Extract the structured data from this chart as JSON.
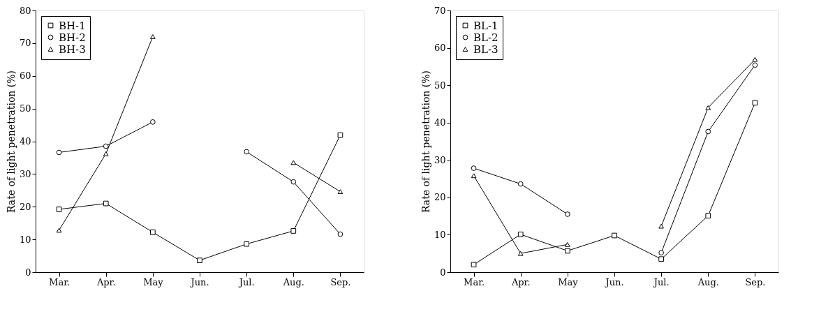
{
  "chart_data": [
    {
      "type": "line",
      "ylabel": "Rate of light penetration (%)",
      "categories": [
        "Mar.",
        "Apr.",
        "May",
        "Jun.",
        "Jul.",
        "Aug.",
        "Sep."
      ],
      "ylim": [
        0,
        80
      ],
      "yticks": [
        0,
        10,
        20,
        30,
        40,
        50,
        60,
        70,
        80
      ],
      "grid": false,
      "legend": "top left",
      "line_style": "solid",
      "series": [
        {
          "name": "BH-1",
          "color": "#000000",
          "marker": "square",
          "values": [
            19.2,
            21,
            12.2,
            3.6,
            8.6,
            12.6,
            41.9
          ]
        },
        {
          "name": "BH-2",
          "color": "#000000",
          "marker": "circle",
          "values": [
            36.6,
            38.5,
            45.9,
            null,
            36.8,
            27.6,
            11.6
          ]
        },
        {
          "name": "BH-3",
          "color": "#000000",
          "marker": "triangle",
          "values": [
            12.8,
            36.2,
            72,
            null,
            null,
            33.5,
            24.6
          ]
        }
      ]
    },
    {
      "type": "line",
      "ylabel": "Rate of light penetration (%)",
      "categories": [
        "Mar.",
        "Apr.",
        "May",
        "Jun.",
        "Jul.",
        "Aug.",
        "Sep."
      ],
      "ylim": [
        0,
        70
      ],
      "yticks": [
        0,
        10,
        20,
        30,
        40,
        50,
        60,
        70
      ],
      "grid": false,
      "legend": "top left",
      "line_style": "solid",
      "series": [
        {
          "name": "BL-1",
          "color": "#000000",
          "marker": "square",
          "values": [
            2,
            10.1,
            5.7,
            9.8,
            3.5,
            15.1,
            45.3
          ]
        },
        {
          "name": "BL-2",
          "color": "#000000",
          "marker": "circle",
          "values": [
            27.8,
            23.6,
            15.5,
            null,
            5.2,
            37.6,
            55.4
          ]
        },
        {
          "name": "BL-3",
          "color": "#000000",
          "marker": "triangle",
          "values": [
            25.8,
            5,
            7.4,
            null,
            12.3,
            44,
            56.9
          ]
        }
      ]
    }
  ]
}
